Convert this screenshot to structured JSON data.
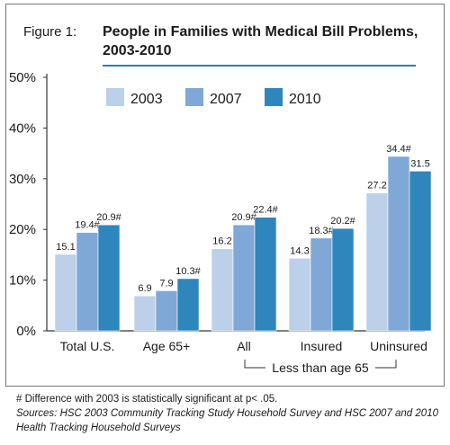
{
  "figure_label": "Figure 1:",
  "title_line1": "People in Families with Medical Bill Problems,",
  "title_line2": "2003-2010",
  "footnote": "# Difference with 2003 is statistically significant at p< .05.",
  "sources_line1": "Sources: HSC 2003 Community Tracking Study Household Survey and HSC 2007 and 2010",
  "sources_line2": "Health Tracking Household Surveys",
  "chart_data": {
    "type": "bar",
    "categories": [
      "Total U.S.",
      "Age 65+",
      "All",
      "Insured",
      "Uninsured"
    ],
    "series": [
      {
        "name": "2003",
        "color": "#bcd0ea",
        "values": [
          15.1,
          6.9,
          16.2,
          14.3,
          27.2
        ],
        "labels": [
          "15.1",
          "6.9",
          "16.2",
          "14.3",
          "27.2"
        ]
      },
      {
        "name": "2007",
        "color": "#7fa8d6",
        "values": [
          19.4,
          7.9,
          20.9,
          18.3,
          34.4
        ],
        "labels": [
          "19.4#",
          "7.9",
          "20.9#",
          "18.3#",
          "34.4#"
        ]
      },
      {
        "name": "2010",
        "color": "#2e86bd",
        "values": [
          20.9,
          10.3,
          22.4,
          20.2,
          31.5
        ],
        "labels": [
          "20.9#",
          "10.3#",
          "22.4#",
          "20.2#",
          "31.5"
        ]
      }
    ],
    "y_ticks": [
      "0%",
      "10%",
      "20%",
      "30%",
      "40%",
      "50%"
    ],
    "ylim": [
      0,
      50
    ],
    "group_label": "Less than age 65",
    "legend_position": "top"
  }
}
